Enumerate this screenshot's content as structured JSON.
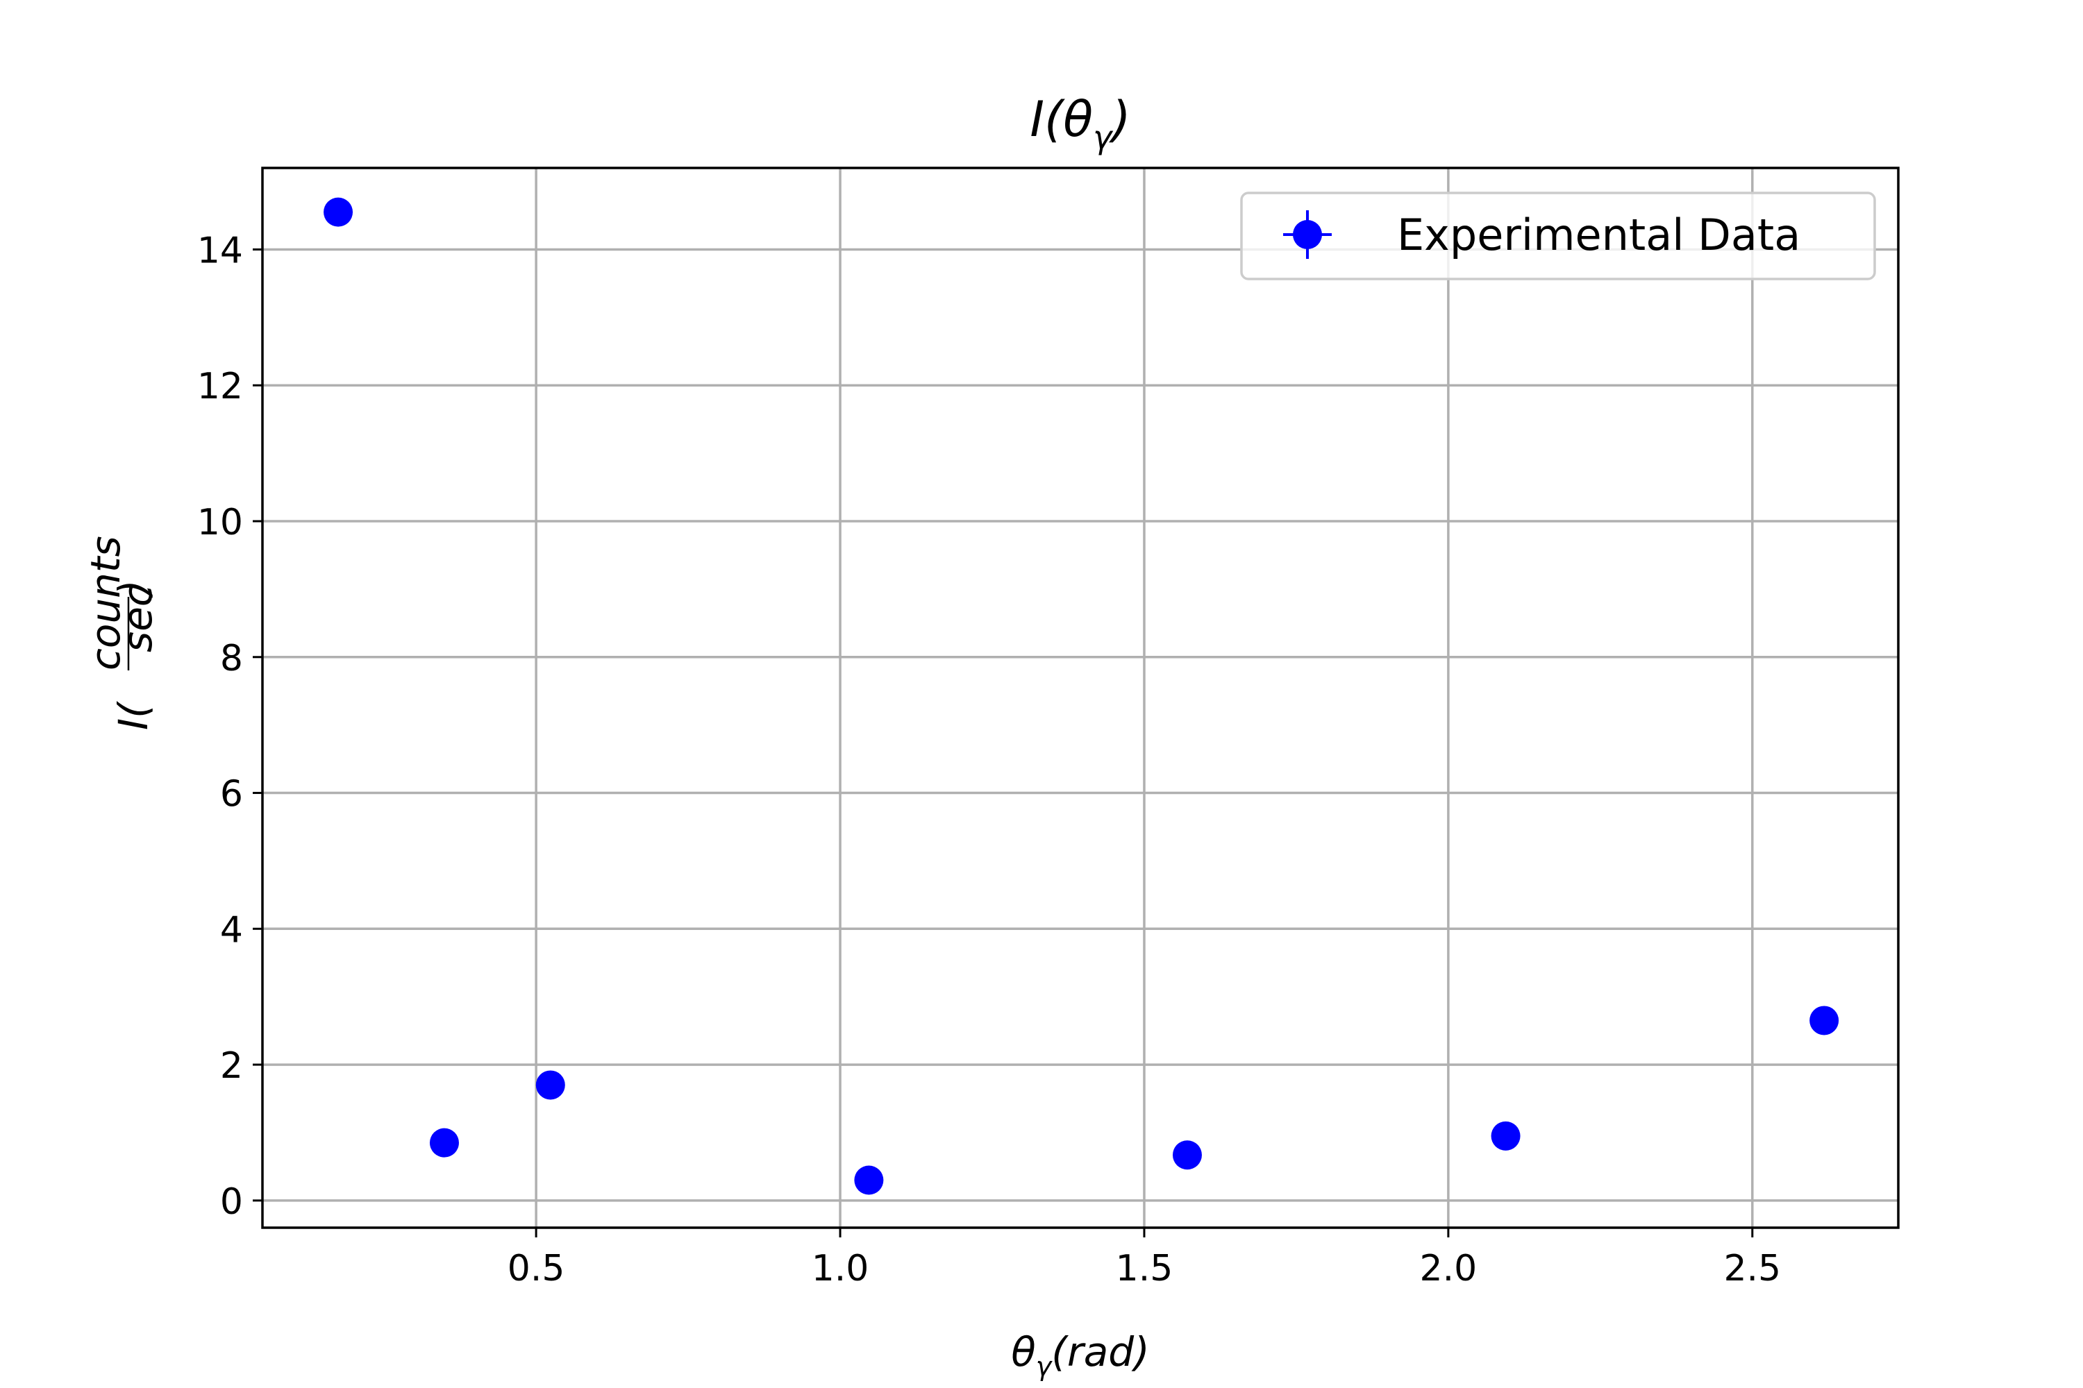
{
  "chart_data": {
    "type": "scatter",
    "title": {
      "base": "I(θ",
      "sub": "γ",
      "tail": ")"
    },
    "xlabel": {
      "base": "θ",
      "sub": "γ",
      "tail": "(rad)"
    },
    "ylabel": {
      "base": "I(",
      "num": "counts",
      "den": "sec",
      "tail": ")"
    },
    "xlim": [
      0.05,
      2.74
    ],
    "ylim": [
      -0.4,
      15.2
    ],
    "xticks": [
      0.5,
      1.0,
      1.5,
      2.0,
      2.5
    ],
    "xtick_labels": [
      "0.5",
      "1.0",
      "1.5",
      "2.0",
      "2.5"
    ],
    "yticks": [
      0,
      2,
      4,
      6,
      8,
      10,
      12,
      14
    ],
    "ytick_labels": [
      "0",
      "2",
      "4",
      "6",
      "8",
      "10",
      "12",
      "14"
    ],
    "grid": true,
    "legend_position": "top-right",
    "series": [
      {
        "name": "Experimental Data",
        "color": "#0000ff",
        "marker": "circle",
        "x": [
          0.1745,
          0.3491,
          0.5236,
          1.0472,
          1.5708,
          2.0944,
          2.618
        ],
        "y": [
          14.55,
          0.85,
          1.7,
          0.3,
          0.67,
          0.95,
          2.65
        ]
      }
    ]
  }
}
